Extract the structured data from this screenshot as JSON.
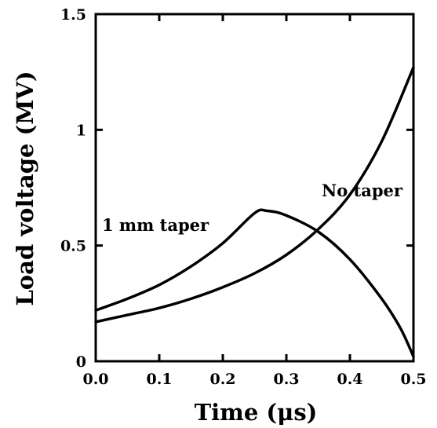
{
  "chart_data": {
    "type": "line",
    "xlabel": "Time (μs)",
    "ylabel": "Load voltage (MV)",
    "xlim": [
      0.0,
      0.5
    ],
    "ylim": [
      0,
      1.5
    ],
    "xticks": [
      0.0,
      0.1,
      0.2,
      0.3,
      0.4,
      0.5
    ],
    "xtick_labels": [
      "0.0",
      "0.1",
      "0.2",
      "0.3",
      "0.4",
      "0.5"
    ],
    "yticks": [
      0,
      0.5,
      1,
      1.5
    ],
    "ytick_labels": [
      "0",
      "0.5",
      "1",
      "1.5"
    ],
    "grid": false,
    "series": [
      {
        "name": "1 mm taper",
        "x": [
          0.0,
          0.05,
          0.1,
          0.15,
          0.2,
          0.25,
          0.27,
          0.3,
          0.35,
          0.4,
          0.45,
          0.48,
          0.5
        ],
        "y": [
          0.22,
          0.27,
          0.33,
          0.41,
          0.51,
          0.64,
          0.65,
          0.63,
          0.56,
          0.44,
          0.27,
          0.14,
          0.02
        ]
      },
      {
        "name": "No taper",
        "x": [
          0.0,
          0.05,
          0.1,
          0.15,
          0.2,
          0.25,
          0.3,
          0.35,
          0.4,
          0.45,
          0.5
        ],
        "y": [
          0.17,
          0.2,
          0.23,
          0.27,
          0.32,
          0.38,
          0.46,
          0.57,
          0.72,
          0.95,
          1.27
        ]
      }
    ],
    "annotations": [
      {
        "text": "1 mm taper",
        "series": "1 mm taper"
      },
      {
        "text": "No taper",
        "series": "No taper"
      }
    ]
  }
}
